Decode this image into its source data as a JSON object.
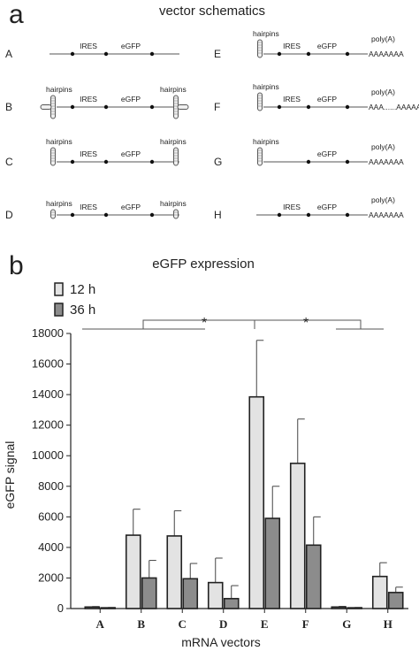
{
  "panel_a": {
    "letter": "a",
    "title": "vector schematics",
    "rows": [
      {
        "letter": "A",
        "left": "none",
        "right": "none",
        "tail": ""
      },
      {
        "letter": "B",
        "left": "big",
        "right": "big",
        "tail": ""
      },
      {
        "letter": "C",
        "left": "mid",
        "right": "mid",
        "tail": ""
      },
      {
        "letter": "D",
        "left": "small",
        "right": "small",
        "tail": ""
      },
      {
        "letter": "E",
        "left": "mid",
        "right": "none",
        "tail": "AAAAAAA"
      },
      {
        "letter": "F",
        "left": "mid",
        "right": "none",
        "tail": "AAA......AAAAAAA"
      },
      {
        "letter": "G",
        "left": "mid",
        "right": "none",
        "tail": "AAAAAAA",
        "no_ires": true
      },
      {
        "letter": "H",
        "left": "none",
        "right": "none",
        "tail": "AAAAAAA"
      }
    ],
    "labels": {
      "ires": "IRES",
      "egfp": "eGFP",
      "hairpins": "hairpins",
      "polya": "poly(A)"
    }
  },
  "panel_b": {
    "letter": "b",
    "title": "eGFP expression"
  },
  "significance": "*",
  "chart_data": {
    "type": "bar",
    "title": "eGFP expression",
    "xlabel": "mRNA vectors",
    "ylabel": "eGFP signal",
    "ylim": [
      0,
      18000
    ],
    "yticks": [
      0,
      2000,
      4000,
      6000,
      8000,
      10000,
      12000,
      14000,
      16000,
      18000
    ],
    "categories": [
      "A",
      "B",
      "C",
      "D",
      "E",
      "F",
      "G",
      "H"
    ],
    "series": [
      {
        "name": "12 h",
        "color": "#e3e3e3",
        "values": [
          100,
          4800,
          4750,
          1700,
          13850,
          9500,
          100,
          2100
        ],
        "errors": [
          30,
          1700,
          1650,
          1600,
          3700,
          2900,
          40,
          900
        ]
      },
      {
        "name": "36 h",
        "color": "#8c8c8c",
        "values": [
          50,
          2000,
          1950,
          650,
          5900,
          4150,
          50,
          1050
        ],
        "errors": [
          20,
          1150,
          1000,
          850,
          2100,
          1850,
          20,
          350
        ]
      }
    ],
    "legend": "top-left",
    "grid": false
  }
}
